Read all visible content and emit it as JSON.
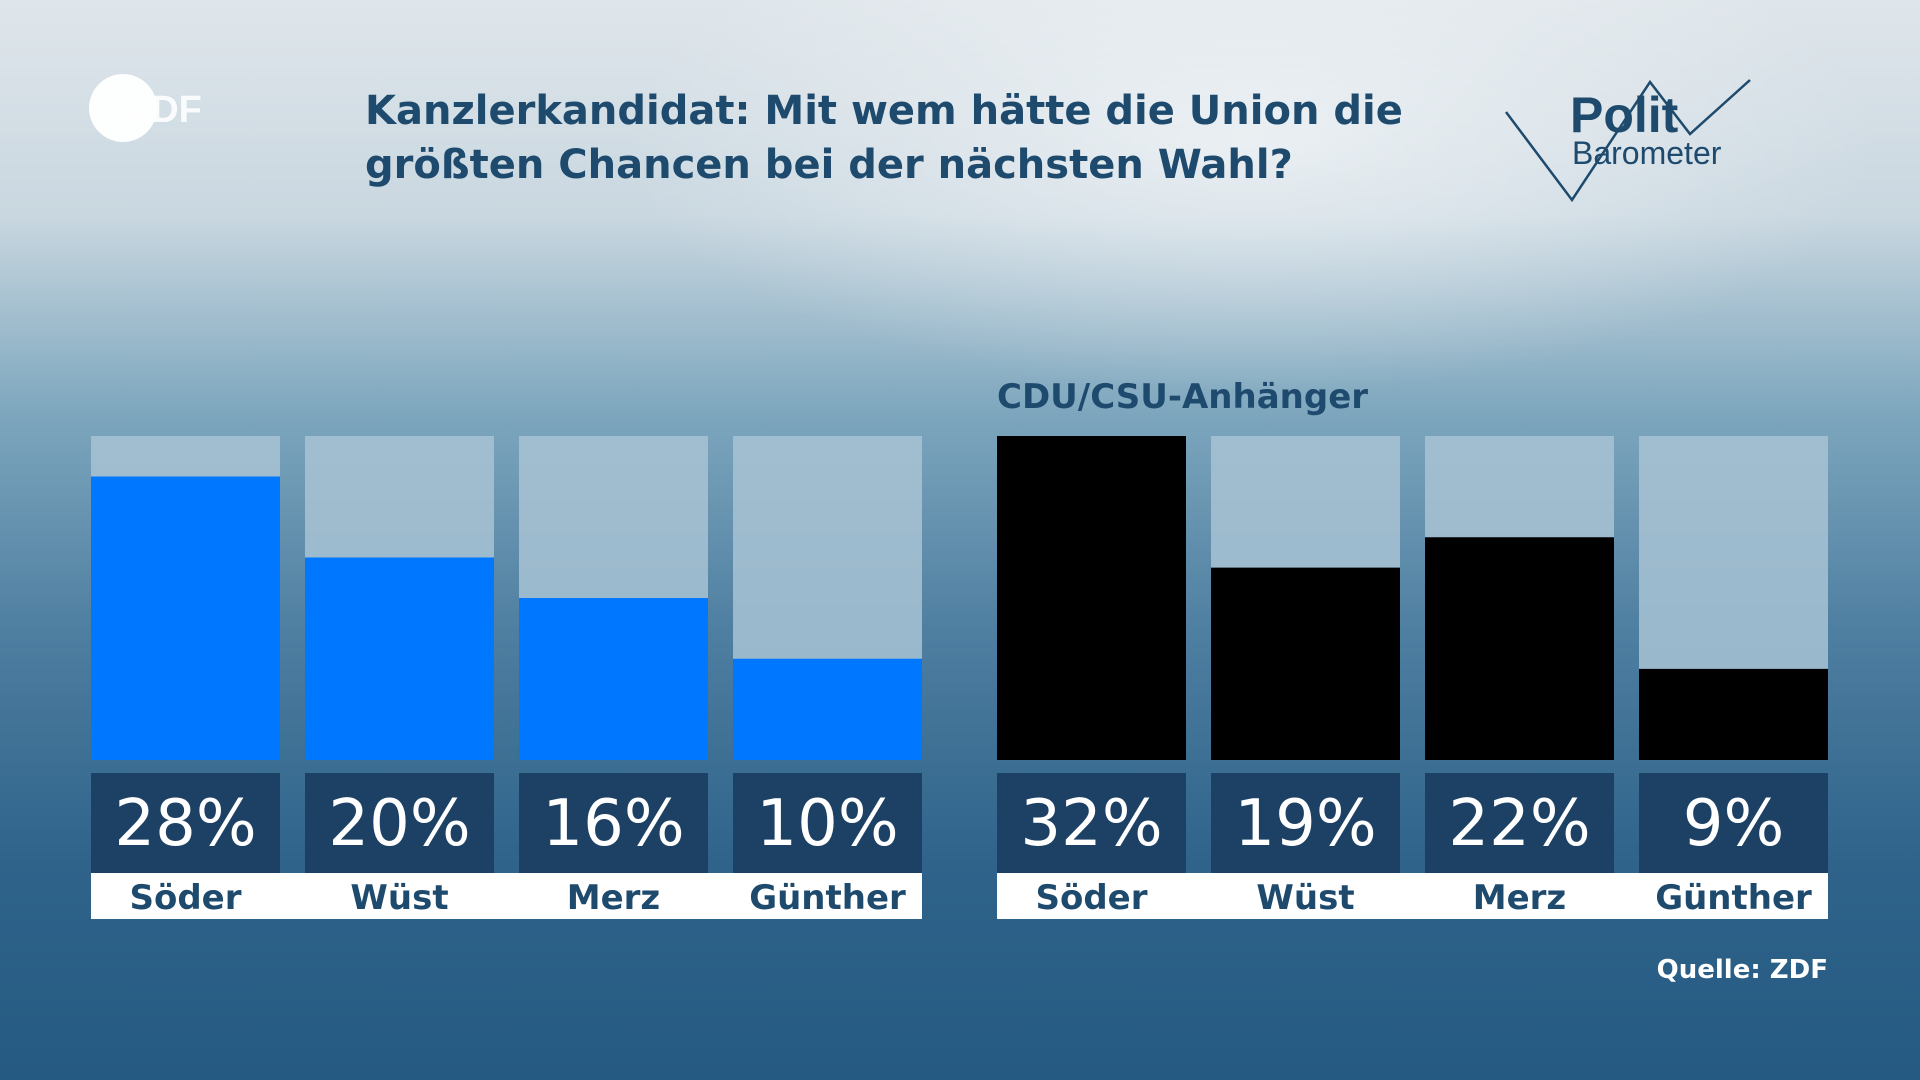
{
  "header": {
    "title_line1": "Kanzlerkandidat: Mit wem hätte die Union die",
    "title_line2": "größten Chancen bei der nächsten Wahl?",
    "zdf_logo_text": "ZDF",
    "polit_logo_line1": "Polit",
    "polit_logo_line2": "Barometer"
  },
  "source": "Quelle: ZDF",
  "colors": {
    "bar_all": "#0077ff",
    "bar_supporters": "#000000",
    "bar_background": "#a8c3d4",
    "value_box": "#1d4165",
    "title": "#1e4a6e"
  },
  "chart_data": [
    {
      "type": "bar",
      "title": "",
      "categories": [
        "Söder",
        "Wüst",
        "Merz",
        "Günther"
      ],
      "values": [
        28,
        20,
        16,
        10
      ],
      "value_labels": [
        "28%",
        "20%",
        "16%",
        "10%"
      ],
      "unit": "%",
      "ylim": [
        0,
        32
      ],
      "color": "#0077ff"
    },
    {
      "type": "bar",
      "title": "CDU/CSU-Anhänger",
      "categories": [
        "Söder",
        "Wüst",
        "Merz",
        "Günther"
      ],
      "values": [
        32,
        19,
        22,
        9
      ],
      "value_labels": [
        "32%",
        "19%",
        "22%",
        "9%"
      ],
      "unit": "%",
      "ylim": [
        0,
        32
      ],
      "color": "#000000"
    }
  ]
}
